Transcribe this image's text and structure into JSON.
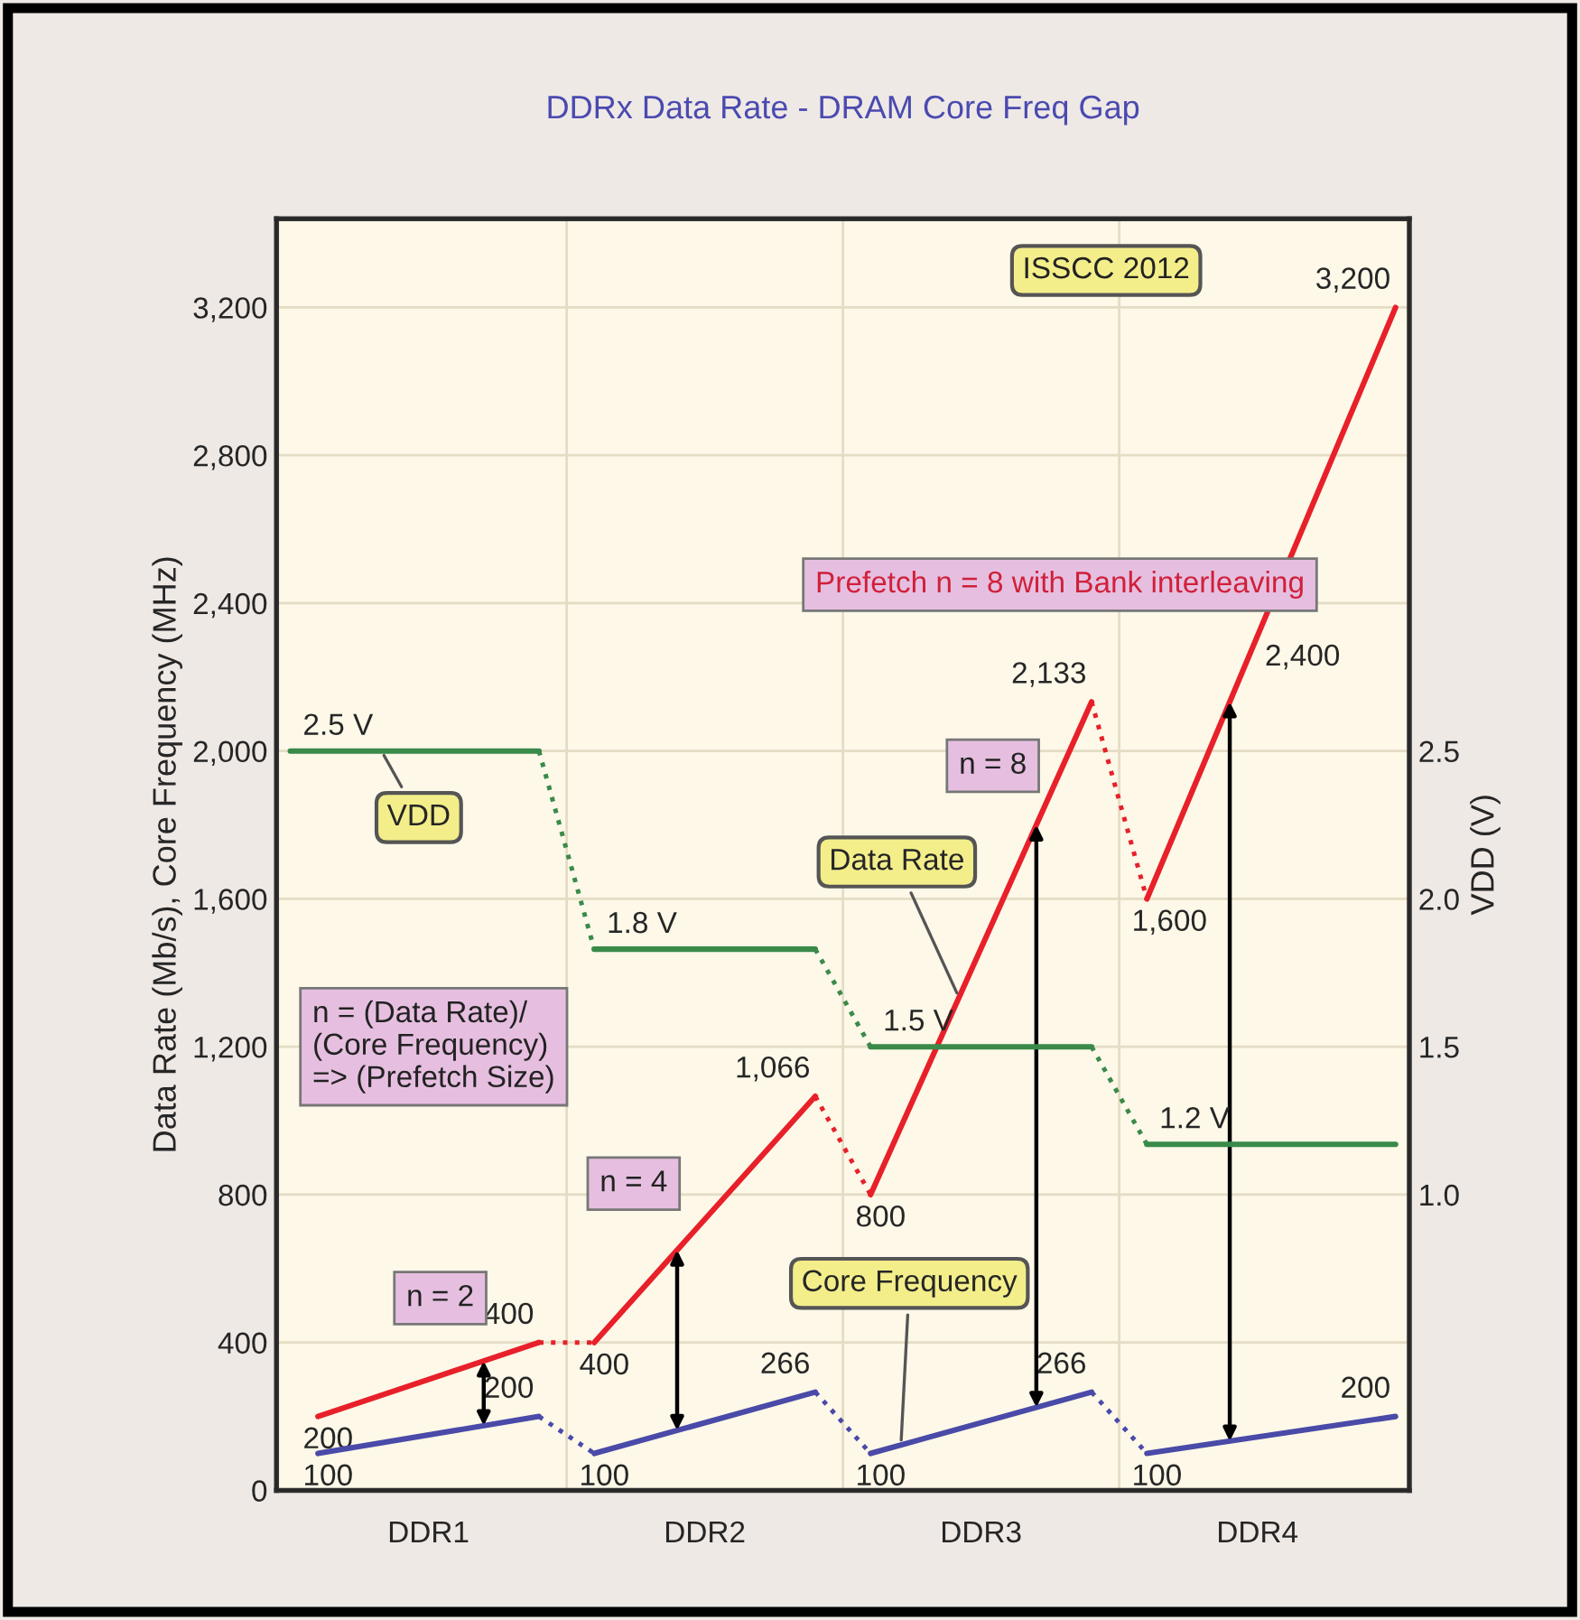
{
  "chart_data": {
    "type": "line",
    "title": "DDRx Data Rate - DRAM Core Freq Gap",
    "ylabel": "Data Rate (Mb/s), Core Frequency (MHz)",
    "y2label": "VDD (V)",
    "categories": [
      null,
      null,
      null,
      null,
      null,
      "DDR1",
      null,
      null,
      null,
      null,
      null,
      null,
      null,
      null,
      null,
      "DDR2",
      null,
      null,
      null,
      null,
      null,
      null,
      null,
      null,
      null,
      "DDR3",
      null,
      null,
      null,
      null,
      null,
      null,
      null,
      null,
      null,
      "DDR4",
      null,
      null,
      null,
      null,
      null
    ],
    "ylim": [
      0,
      3440
    ],
    "yticks": [
      0,
      400,
      800,
      {
        "value": 1200,
        "label": "1,200"
      },
      {
        "value": 1600,
        "label": "1,600"
      },
      {
        "value": 2000,
        "label": "2,000"
      },
      {
        "value": 2400,
        "label": "2,400"
      },
      {
        "value": 2800,
        "label": "2,800"
      },
      {
        "value": 3200,
        "label": "3,200"
      }
    ],
    "y2lim": [
      0,
      4.3
    ],
    "y2ticks": [
      {
        "value": 1,
        "label": "1.0"
      },
      1.5,
      {
        "value": 2,
        "label": "2.0"
      },
      2.5
    ],
    "grid": true,
    "series": [
      {
        "name": "Data Rate",
        "color": "#e8202a",
        "values": [
          null,
          200,
          null,
          null,
          null,
          null,
          null,
          350,
          null,
          400,
          null,
          400,
          null,
          null,
          650,
          null,
          null,
          null,
          null,
          1066,
          null,
          800,
          null,
          null,
          null,
          null,
          null,
          1800,
          null,
          2133,
          null,
          1600,
          null,
          null,
          2133,
          null,
          null,
          null,
          null,
          null,
          3200
        ],
        "value_labels": [
          null,
          "200",
          null,
          null,
          null,
          null,
          null,
          null,
          null,
          "400",
          null,
          "400",
          null,
          null,
          null,
          null,
          null,
          null,
          null,
          "1,066",
          null,
          "800",
          null,
          null,
          null,
          null,
          null,
          null,
          null,
          "2,133",
          null,
          "1,600",
          null,
          null,
          null,
          null,
          null,
          null,
          null,
          null,
          "3,200"
        ]
      },
      {
        "name": "Core Frequency",
        "color": "#4a4aa8",
        "values": [
          null,
          100,
          null,
          null,
          null,
          null,
          null,
          null,
          null,
          200,
          null,
          100,
          null,
          null,
          null,
          null,
          null,
          null,
          null,
          266,
          null,
          100,
          null,
          null,
          null,
          null,
          null,
          null,
          null,
          266,
          null,
          100,
          null,
          null,
          null,
          null,
          null,
          null,
          null,
          null,
          200
        ],
        "value_labels": [
          null,
          "100",
          null,
          null,
          null,
          null,
          null,
          null,
          null,
          "200",
          null,
          "100",
          null,
          null,
          null,
          null,
          null,
          null,
          null,
          "266",
          null,
          "100",
          null,
          null,
          null,
          null,
          null,
          null,
          null,
          "266",
          null,
          "100",
          null,
          null,
          null,
          null,
          null,
          null,
          null,
          null,
          "200"
        ]
      },
      {
        "name": "VDD",
        "axis": "y2",
        "color": "#3a8a4a",
        "values": [
          2.5,
          null,
          null,
          null,
          null,
          null,
          null,
          null,
          null,
          2.5,
          null,
          1.83,
          null,
          null,
          null,
          null,
          null,
          null,
          null,
          1.83,
          null,
          1.5,
          null,
          null,
          null,
          null,
          null,
          null,
          null,
          1.5,
          null,
          1.17,
          null,
          null,
          null,
          null,
          null,
          null,
          null,
          null,
          1.17
        ],
        "value_labels": [
          "2.5 V",
          null,
          null,
          null,
          null,
          null,
          null,
          null,
          null,
          null,
          null,
          "1.8 V",
          null,
          null,
          null,
          null,
          null,
          null,
          null,
          null,
          null,
          "1.5 V",
          null,
          null,
          null,
          null,
          null,
          null,
          null,
          null,
          null,
          "1.2 V",
          null,
          null,
          null,
          null,
          null,
          null,
          null,
          null,
          null
        ]
      }
    ],
    "annotations": [
      "ISSCC 2012",
      "n = (Data Rate)/(Core Frequency) => (Prefetch Size)",
      "n = 2",
      "n = 4",
      "n = 8",
      "Prefetch n = 8 with Bank interleaving",
      "2,400"
    ]
  }
}
